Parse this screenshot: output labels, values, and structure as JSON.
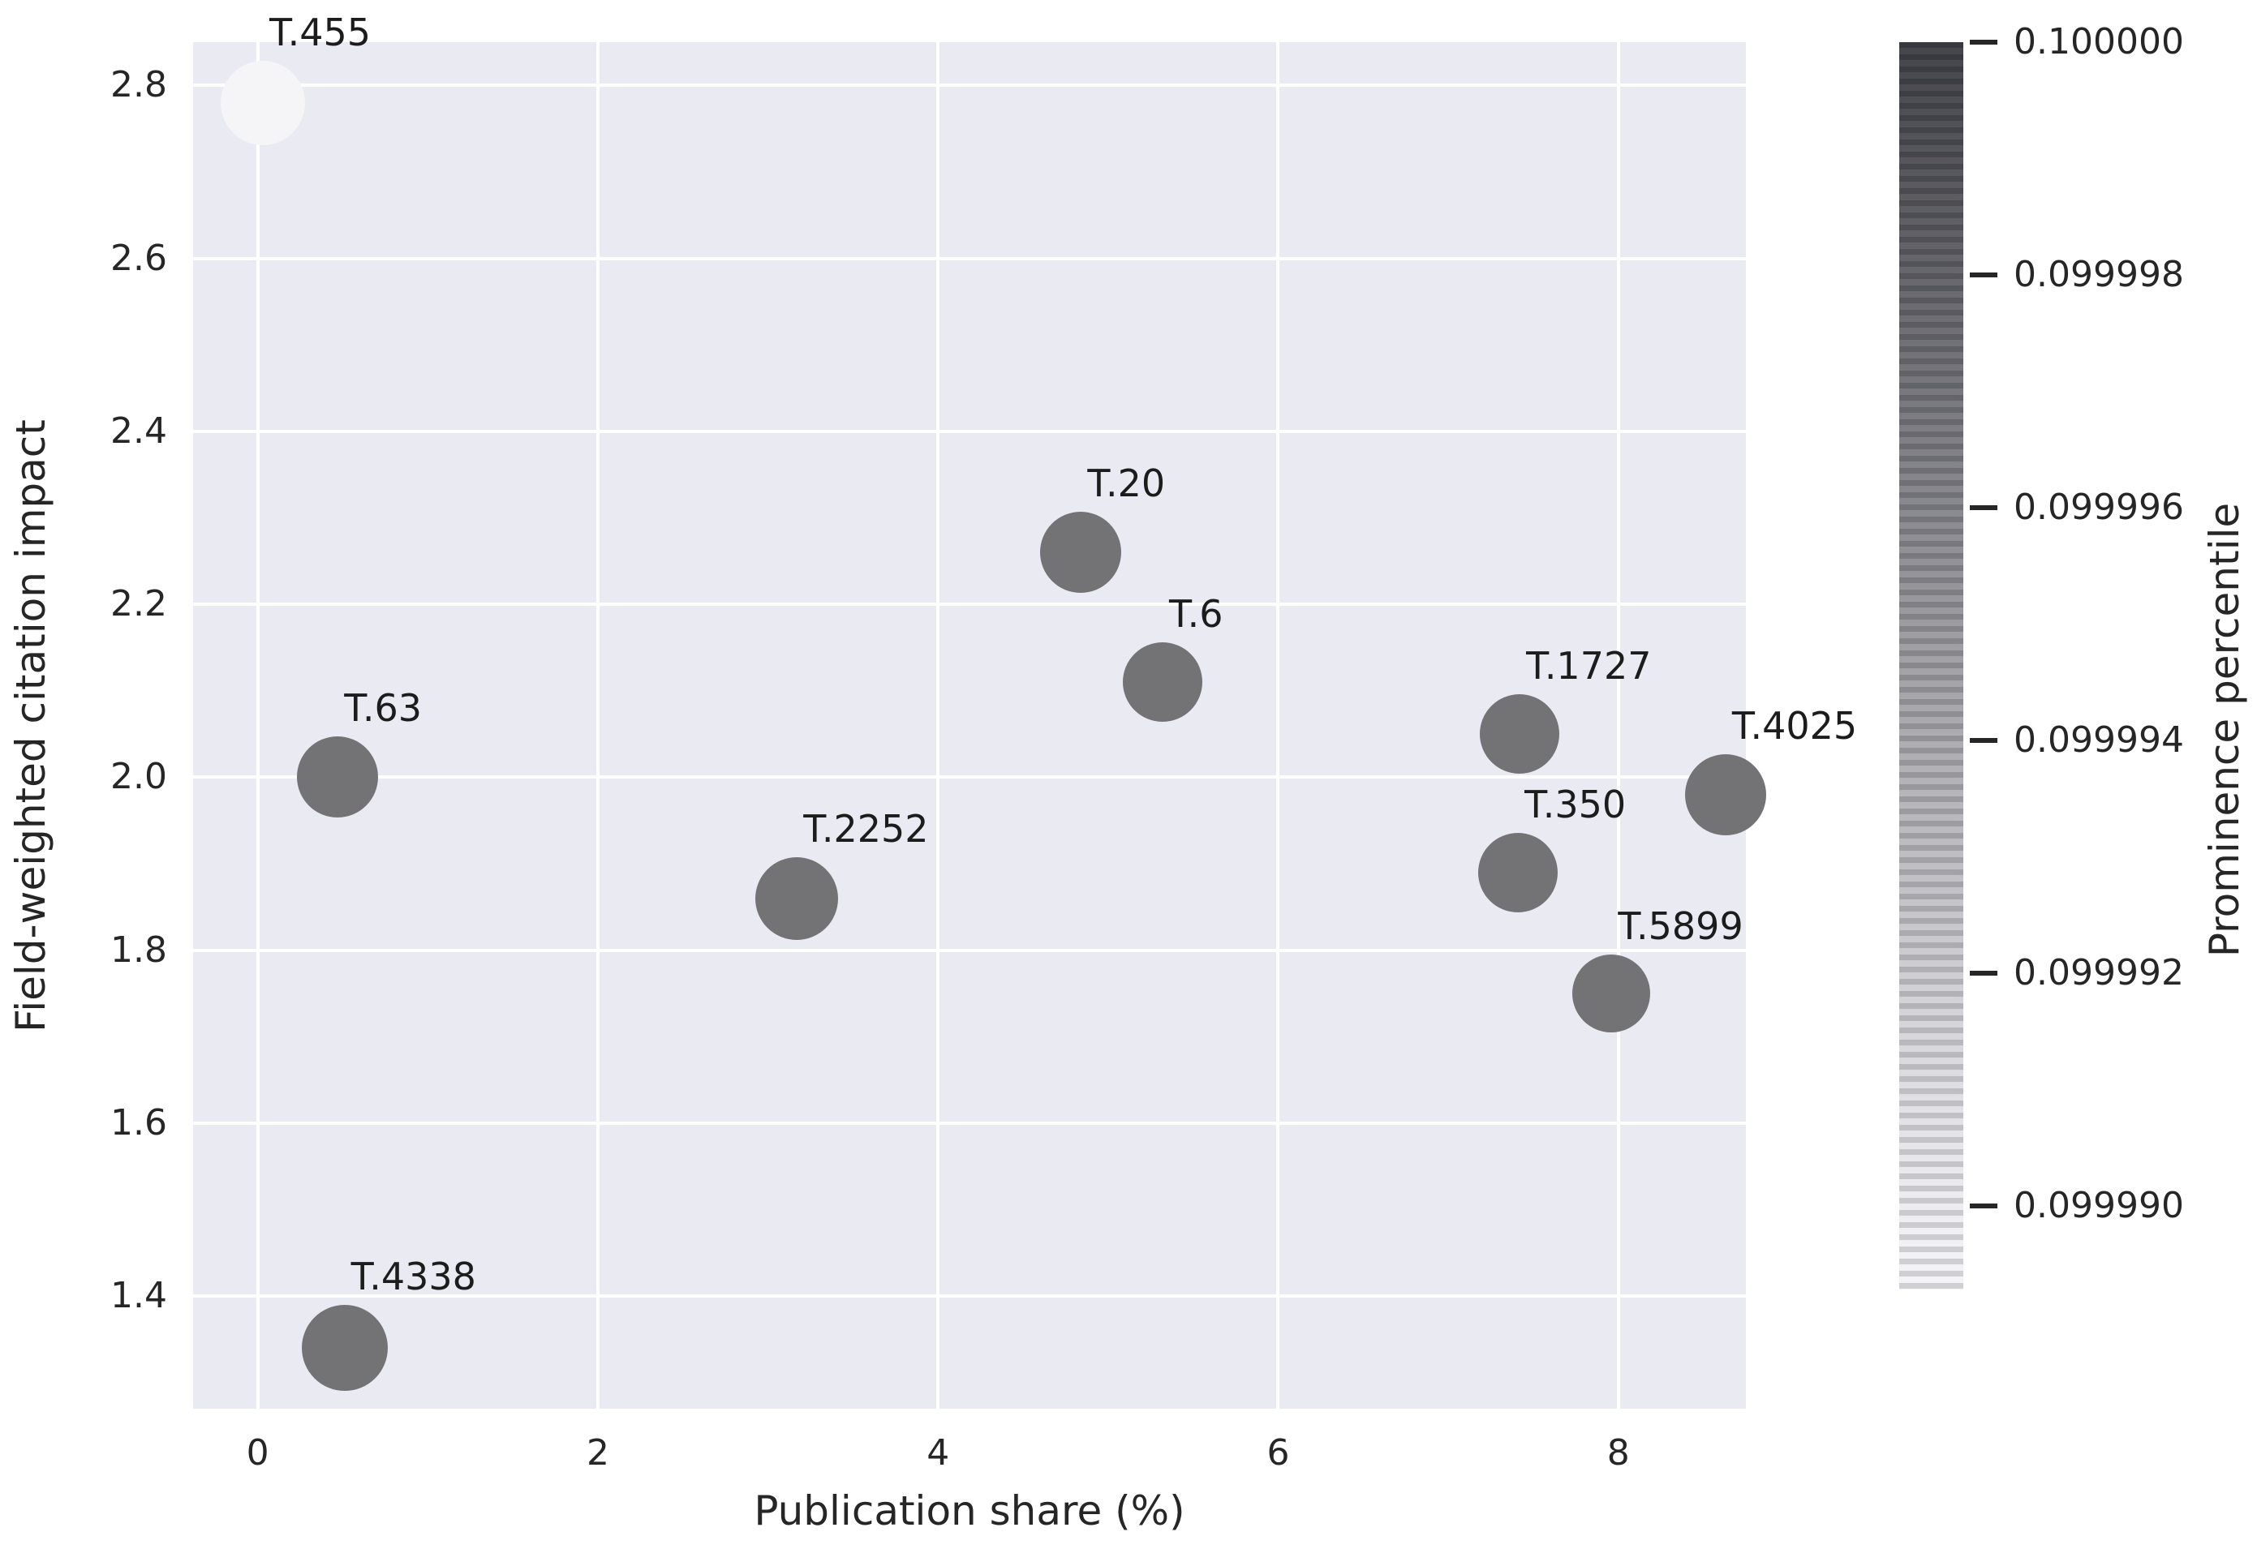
{
  "figure": {
    "background": "#ffffff",
    "plot_background": "#eaebf2",
    "gridline_color": "#ffffff",
    "text_color": "#262626",
    "annotation_color": "#1c1c1c"
  },
  "chart_data": {
    "type": "scatter",
    "title": "",
    "xlabel": "Publication share (%)",
    "ylabel": "Field-weighted citation impact",
    "xlim": [
      -0.38,
      8.75
    ],
    "ylim": [
      1.27,
      2.85
    ],
    "grid": true,
    "x_ticks": [
      {
        "value": 0,
        "label": "0"
      },
      {
        "value": 2,
        "label": "2"
      },
      {
        "value": 4,
        "label": "4"
      },
      {
        "value": 6,
        "label": "6"
      },
      {
        "value": 8,
        "label": "8"
      }
    ],
    "y_ticks": [
      {
        "value": 1.4,
        "label": "1.4"
      },
      {
        "value": 1.6,
        "label": "1.6"
      },
      {
        "value": 1.8,
        "label": "1.8"
      },
      {
        "value": 2.0,
        "label": "2.0"
      },
      {
        "value": 2.2,
        "label": "2.2"
      },
      {
        "value": 2.4,
        "label": "2.4"
      },
      {
        "value": 2.6,
        "label": "2.6"
      },
      {
        "value": 2.8,
        "label": "2.8"
      }
    ],
    "points": [
      {
        "label": "T.455",
        "x": 0.03,
        "y": 2.78,
        "radius_px": 52,
        "color": "#f5f5f8"
      },
      {
        "label": "T.63",
        "x": 0.47,
        "y": 2.0,
        "radius_px": 50,
        "color": "#737376"
      },
      {
        "label": "T.4338",
        "x": 0.51,
        "y": 1.34,
        "radius_px": 53,
        "color": "#737376"
      },
      {
        "label": "T.2252",
        "x": 3.17,
        "y": 1.86,
        "radius_px": 51,
        "color": "#737376"
      },
      {
        "label": "T.20",
        "x": 4.84,
        "y": 2.26,
        "radius_px": 50,
        "color": "#737376"
      },
      {
        "label": "T.6",
        "x": 5.32,
        "y": 2.11,
        "radius_px": 49,
        "color": "#737376"
      },
      {
        "label": "T.1727",
        "x": 7.42,
        "y": 2.05,
        "radius_px": 49,
        "color": "#737376"
      },
      {
        "label": "T.350",
        "x": 7.41,
        "y": 1.89,
        "radius_px": 49,
        "color": "#737376"
      },
      {
        "label": "T.5899",
        "x": 7.96,
        "y": 1.75,
        "radius_px": 48,
        "color": "#737376"
      },
      {
        "label": "T.4025",
        "x": 8.63,
        "y": 1.98,
        "radius_px": 50,
        "color": "#737376"
      }
    ],
    "colorbar": {
      "label": "Prominence percentile",
      "tick_labels": [
        "0.100000",
        "0.099998",
        "0.099996",
        "0.099994",
        "0.099992",
        "0.099990"
      ],
      "top_color": "#3e3e45",
      "bottom_color": "#f5f5f7"
    },
    "legend_position": "none"
  }
}
